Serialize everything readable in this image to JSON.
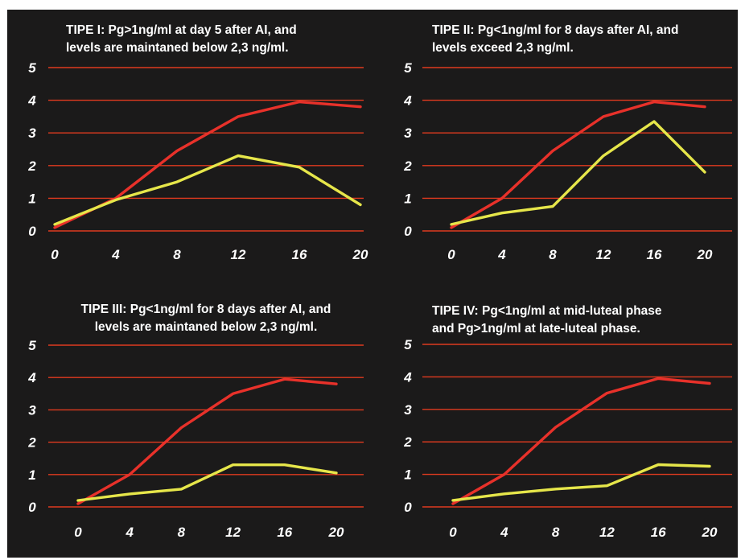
{
  "colors": {
    "background": "#1b1a1a",
    "frame": "#ffffff",
    "grid": "#e03a1f",
    "series_red": "#e8312a",
    "series_yellow": "#e6e64a",
    "text": "#ffffff"
  },
  "chart_data": [
    {
      "type": "line",
      "title": "TIPE I: Pg>1ng/ml at day 5 after AI, and levels are maintaned below 2,3 ng/ml.",
      "title_lines": [
        "TIPE I: Pg>1ng/ml at day 5 after AI, and",
        "levels are maintaned below 2,3 ng/ml."
      ],
      "title_align": "left",
      "x": [
        0,
        4,
        8,
        12,
        16,
        20
      ],
      "x_ticks": [
        "0",
        "4",
        "8",
        "12",
        "16",
        "20"
      ],
      "y_ticks": [
        "0",
        "1",
        "2",
        "3",
        "4",
        "5"
      ],
      "ylim": [
        0,
        5
      ],
      "grid": true,
      "series": [
        {
          "color": "#e8312a",
          "values": [
            0.1,
            1.0,
            2.45,
            3.5,
            3.95,
            3.8
          ]
        },
        {
          "color": "#e6e64a",
          "values": [
            0.2,
            0.95,
            1.5,
            2.3,
            1.95,
            0.8
          ]
        }
      ]
    },
    {
      "type": "line",
      "title": "TIPE II: Pg<1ng/ml for 8 days after AI, and levels exceed 2,3 ng/ml.",
      "title_lines": [
        "TIPE II: Pg<1ng/ml for 8 days after AI, and",
        "levels exceed 2,3 ng/ml."
      ],
      "title_align": "left",
      "x": [
        0,
        4,
        8,
        12,
        16,
        20
      ],
      "x_ticks": [
        "0",
        "4",
        "8",
        "12",
        "16",
        "20"
      ],
      "y_ticks": [
        "0",
        "1",
        "2",
        "3",
        "4",
        "5"
      ],
      "ylim": [
        0,
        5
      ],
      "grid": true,
      "series": [
        {
          "color": "#e8312a",
          "values": [
            0.1,
            1.0,
            2.45,
            3.5,
            3.95,
            3.8
          ]
        },
        {
          "color": "#e6e64a",
          "values": [
            0.2,
            0.55,
            0.75,
            2.3,
            3.35,
            1.8
          ]
        }
      ]
    },
    {
      "type": "line",
      "title": "TIPE III: Pg<1ng/ml for 8 days after AI, and levels are maintaned below 2,3 ng/ml.",
      "title_lines": [
        "TIPE III: Pg<1ng/ml for 8 days after AI, and",
        "levels are maintaned below 2,3 ng/ml."
      ],
      "title_align": "center",
      "x": [
        0,
        4,
        8,
        12,
        16,
        20
      ],
      "x_ticks": [
        "0",
        "4",
        "8",
        "12",
        "16",
        "20"
      ],
      "y_ticks": [
        "0",
        "1",
        "2",
        "3",
        "4",
        "5"
      ],
      "ylim": [
        0,
        5
      ],
      "grid": true,
      "series": [
        {
          "color": "#e8312a",
          "values": [
            0.1,
            1.0,
            2.45,
            3.5,
            3.95,
            3.8
          ]
        },
        {
          "color": "#e6e64a",
          "values": [
            0.2,
            0.4,
            0.55,
            1.3,
            1.3,
            1.05
          ]
        }
      ]
    },
    {
      "type": "line",
      "title": "TIPE IV: Pg<1ng/ml at mid-luteal phase and Pg>1ng/ml at late-luteal phase.",
      "title_lines": [
        "TIPE IV: Pg<1ng/ml at mid-luteal phase",
        "and Pg>1ng/ml at late-luteal phase."
      ],
      "title_align": "left",
      "x": [
        0,
        4,
        8,
        12,
        16,
        20
      ],
      "x_ticks": [
        "0",
        "4",
        "8",
        "12",
        "16",
        "20"
      ],
      "y_ticks": [
        "0",
        "1",
        "2",
        "3",
        "4",
        "5"
      ],
      "ylim": [
        0,
        5
      ],
      "grid": true,
      "series": [
        {
          "color": "#e8312a",
          "values": [
            0.1,
            1.0,
            2.45,
            3.5,
            3.95,
            3.8
          ]
        },
        {
          "color": "#e6e64a",
          "values": [
            0.2,
            0.4,
            0.55,
            0.65,
            1.3,
            1.25
          ]
        }
      ]
    }
  ]
}
